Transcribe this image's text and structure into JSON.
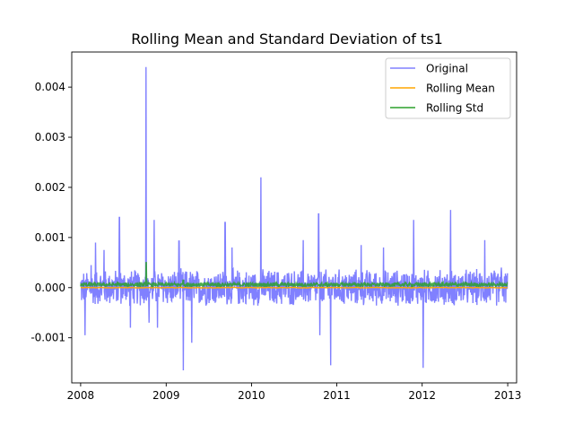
{
  "chart_data": {
    "type": "line",
    "title": "Rolling Mean and Standard Deviation of ts1",
    "xlabel": "",
    "ylabel": "",
    "xlim": [
      "2007-11-24",
      "2013-02-08"
    ],
    "ylim": [
      -0.0019,
      0.0047
    ],
    "x_ticks": [
      "2008",
      "2009",
      "2010",
      "2011",
      "2012",
      "2013"
    ],
    "y_ticks": [
      "-0.001",
      "0.000",
      "0.001",
      "0.002",
      "0.003",
      "0.004"
    ],
    "y_tick_values": [
      -0.001,
      0.0,
      0.001,
      0.002,
      0.003,
      0.004
    ],
    "grid": false,
    "legend": "top-right",
    "series": [
      {
        "name": "Original",
        "color": "#8080ff",
        "style": "dense high-frequency fluctuation around zero",
        "typical_range": [
          -0.0004,
          0.0004
        ],
        "peaks": [
          {
            "x": "2008-01-20",
            "y": -0.00095
          },
          {
            "x": "2008-02-15",
            "y": 0.00045
          },
          {
            "x": "2008-03-05",
            "y": 0.0009
          },
          {
            "x": "2008-04-10",
            "y": 0.00075
          },
          {
            "x": "2008-06-15",
            "y": 0.0014
          },
          {
            "x": "2008-08-01",
            "y": -0.0008
          },
          {
            "x": "2008-10-07",
            "y": 0.0044
          },
          {
            "x": "2008-10-20",
            "y": -0.0007
          },
          {
            "x": "2008-11-10",
            "y": 0.00135
          },
          {
            "x": "2008-11-25",
            "y": -0.0008
          },
          {
            "x": "2009-02-25",
            "y": 0.00093
          },
          {
            "x": "2009-03-15",
            "y": -0.00165
          },
          {
            "x": "2009-04-20",
            "y": -0.0011
          },
          {
            "x": "2009-09-10",
            "y": 0.0013
          },
          {
            "x": "2009-10-10",
            "y": 0.0008
          },
          {
            "x": "2010-02-10",
            "y": 0.0022
          },
          {
            "x": "2010-08-10",
            "y": 0.00095
          },
          {
            "x": "2010-10-15",
            "y": 0.00147
          },
          {
            "x": "2010-10-20",
            "y": -0.00095
          },
          {
            "x": "2010-12-05",
            "y": -0.00155
          },
          {
            "x": "2011-04-15",
            "y": 0.00085
          },
          {
            "x": "2011-07-20",
            "y": 0.0008
          },
          {
            "x": "2011-11-25",
            "y": 0.00135
          },
          {
            "x": "2012-01-05",
            "y": -0.0016
          },
          {
            "x": "2012-05-01",
            "y": 0.00155
          },
          {
            "x": "2012-09-25",
            "y": 0.00095
          },
          {
            "x": "2012-12-05",
            "y": 0.0004
          }
        ]
      },
      {
        "name": "Rolling Mean",
        "color": "#ffa500",
        "style": "nearly flat line at zero",
        "value": 0.0
      },
      {
        "name": "Rolling Std",
        "color": "#2ca02c",
        "style": "thin band just above zero",
        "typical_range": [
          2e-05,
          0.0001
        ],
        "peaks": [
          {
            "x": "2008-10-07",
            "y": 0.0005
          },
          {
            "x": "2009-03-15",
            "y": 0.00015
          }
        ]
      }
    ]
  }
}
